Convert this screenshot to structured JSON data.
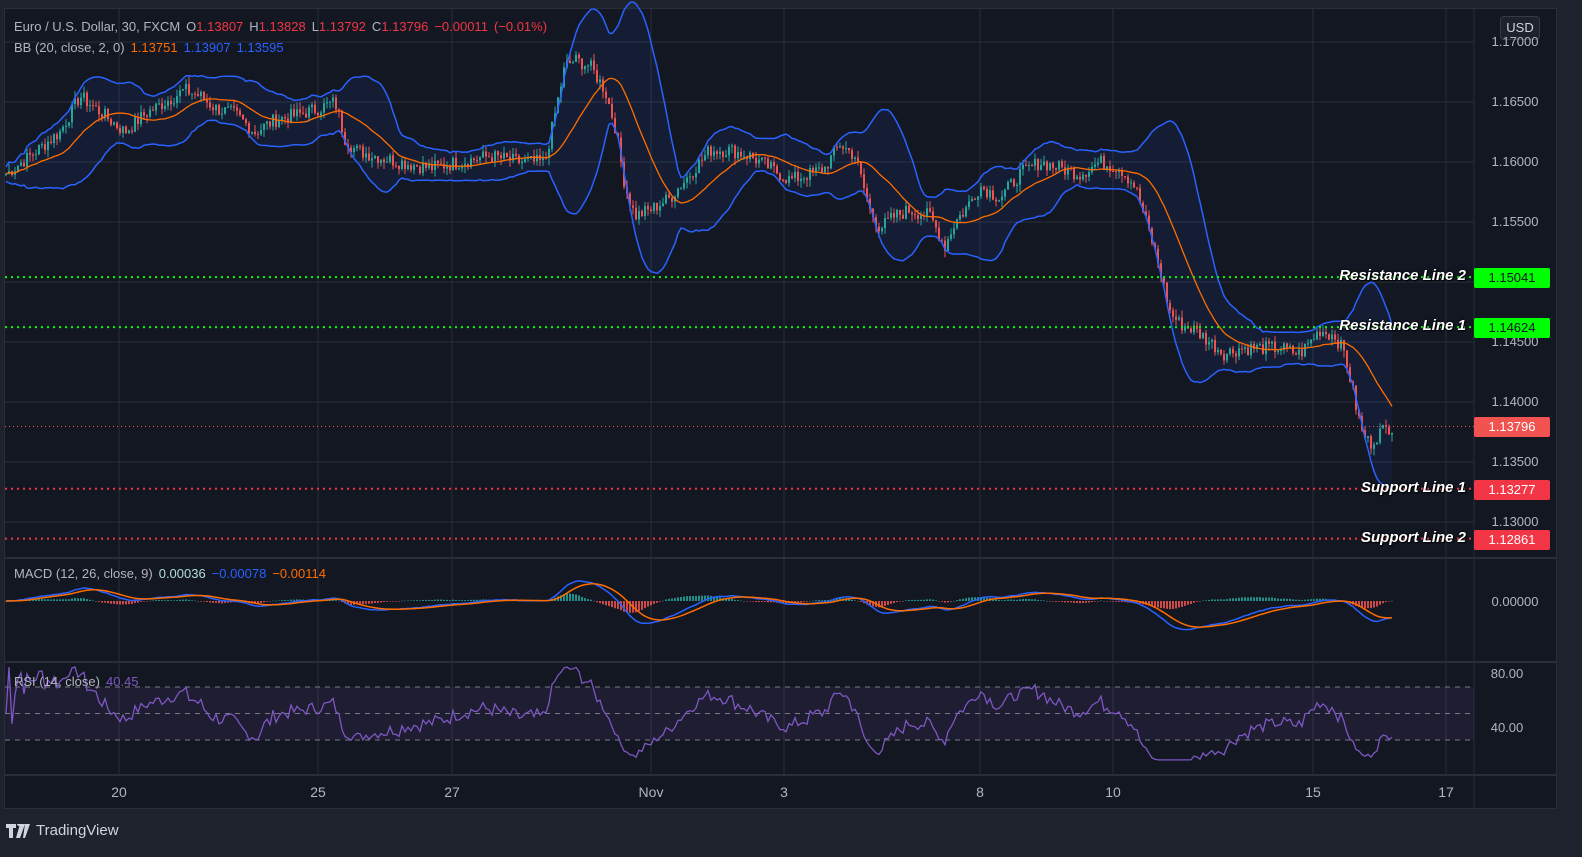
{
  "header": {
    "symbol": "Euro / U.S. Dollar, 30, FXCM",
    "open_label": "O",
    "open": "1.13807",
    "high_label": "H",
    "high": "1.13828",
    "low_label": "L",
    "low": "1.13792",
    "close_label": "C",
    "close": "1.13796",
    "change": "−0.00011",
    "change_pct": "(−0.01%)"
  },
  "bb_legend": {
    "label": "BB (20, close, 2, 0)",
    "basis": "1.13751",
    "upper": "1.13907",
    "lower": "1.13595"
  },
  "macd_legend": {
    "label": "MACD (12, 26, close, 9)",
    "histogram": "0.00036",
    "macd": "−0.00078",
    "signal": "−0.00114"
  },
  "rsi_legend": {
    "label": "RSI (14, close)",
    "value": "40.45"
  },
  "price_axis": {
    "currency": "USD",
    "ticks": [
      "1.17000",
      "1.16500",
      "1.16000",
      "1.15500",
      "1.14500",
      "1.14000",
      "1.13500",
      "1.13000"
    ]
  },
  "macd_axis": {
    "ticks": [
      "0.00000"
    ]
  },
  "rsi_axis": {
    "ticks": [
      "80.00",
      "40.00"
    ]
  },
  "time_axis": {
    "ticks": [
      "20",
      "25",
      "27",
      "Nov",
      "3",
      "8",
      "10",
      "15",
      "17"
    ]
  },
  "horizontal_lines": [
    {
      "label": "Resistance Line 2",
      "price": "1.15041",
      "color": "#00ff00",
      "text_color": "#131722"
    },
    {
      "label": "Resistance Line 1",
      "price": "1.14624",
      "color": "#00ff00",
      "text_color": "#131722"
    },
    {
      "label": "Support Line 1",
      "price": "1.13277",
      "color": "#f23645",
      "text_color": "#ffffff"
    },
    {
      "label": "Support Line 2",
      "price": "1.12861",
      "color": "#f23645",
      "text_color": "#ffffff"
    }
  ],
  "last_price": {
    "value": "1.13796",
    "color": "#f05350"
  },
  "brand": {
    "name": "TradingView"
  },
  "colors": {
    "background": "#131722",
    "grid": "#2a2e39",
    "up": "#26a69a",
    "down": "#ef5350",
    "bb_basis": "#ff6d00",
    "bb_band": "#2962ff",
    "macd": "#2962ff",
    "signal": "#ff6d00",
    "rsi": "#7e57c2",
    "support": "#f23645",
    "resistance": "#00ff00"
  },
  "chart_data": {
    "type": "candlestick",
    "title": "Euro / U.S. Dollar, 30, FXCM",
    "xlabel": "",
    "ylabel": "USD",
    "ylim": [
      1.1265,
      1.1735
    ],
    "x_ticks": [
      "20",
      "25",
      "27",
      "Nov",
      "3",
      "8",
      "10",
      "15",
      "17"
    ],
    "price_path": {
      "x": [
        6,
        30,
        60,
        80,
        95,
        110,
        125,
        145,
        165,
        185,
        200,
        215,
        235,
        255,
        275,
        300,
        320,
        335,
        345,
        355,
        375,
        400,
        430,
        460,
        490,
        520,
        545,
        555,
        565,
        575,
        590,
        605,
        615,
        625,
        635,
        650,
        670,
        690,
        710,
        730,
        750,
        770,
        790,
        810,
        825,
        840,
        855,
        870,
        880,
        895,
        910,
        930,
        945,
        955,
        965,
        980,
        1000,
        1020,
        1040,
        1060,
        1080,
        1100,
        1120,
        1135,
        1150,
        1160,
        1170,
        1180,
        1195,
        1210,
        1225,
        1240,
        1260,
        1280,
        1300,
        1320,
        1335,
        1345,
        1355,
        1362,
        1370,
        1380,
        1392
      ],
      "close": [
        1.159,
        1.1605,
        1.1625,
        1.1655,
        1.1645,
        1.1635,
        1.1625,
        1.164,
        1.165,
        1.166,
        1.1655,
        1.1645,
        1.164,
        1.1625,
        1.1635,
        1.164,
        1.1645,
        1.165,
        1.162,
        1.161,
        1.1605,
        1.16,
        1.1595,
        1.16,
        1.1605,
        1.16,
        1.16,
        1.164,
        1.168,
        1.1685,
        1.168,
        1.166,
        1.163,
        1.158,
        1.1555,
        1.156,
        1.157,
        1.159,
        1.161,
        1.161,
        1.1605,
        1.1595,
        1.1585,
        1.159,
        1.1595,
        1.1615,
        1.1605,
        1.156,
        1.1545,
        1.1555,
        1.156,
        1.1555,
        1.153,
        1.155,
        1.156,
        1.158,
        1.157,
        1.159,
        1.16,
        1.1595,
        1.159,
        1.16,
        1.1595,
        1.158,
        1.154,
        1.151,
        1.1475,
        1.1465,
        1.146,
        1.145,
        1.144,
        1.1445,
        1.1445,
        1.1445,
        1.144,
        1.146,
        1.1455,
        1.144,
        1.14,
        1.1375,
        1.1365,
        1.1375,
        1.138
      ]
    },
    "series": [
      {
        "name": "BB basis (20)",
        "last": 1.13751
      },
      {
        "name": "BB upper",
        "last": 1.13907
      },
      {
        "name": "BB lower",
        "last": 1.13595
      },
      {
        "name": "MACD",
        "last": -0.00078
      },
      {
        "name": "Signal",
        "last": -0.00114
      },
      {
        "name": "Histogram",
        "last": 0.00036
      },
      {
        "name": "RSI (14)",
        "last": 40.45
      }
    ],
    "annotations": [
      {
        "type": "hline",
        "label": "Resistance Line 2",
        "y": 1.15041
      },
      {
        "type": "hline",
        "label": "Resistance Line 1",
        "y": 1.14624
      },
      {
        "type": "hline",
        "label": "Support Line 1",
        "y": 1.13277
      },
      {
        "type": "hline",
        "label": "Support Line 2",
        "y": 1.12861
      }
    ],
    "rsi_bands": [
      30,
      50,
      70
    ],
    "rsi_ylim": [
      10,
      90
    ],
    "grid": true
  }
}
